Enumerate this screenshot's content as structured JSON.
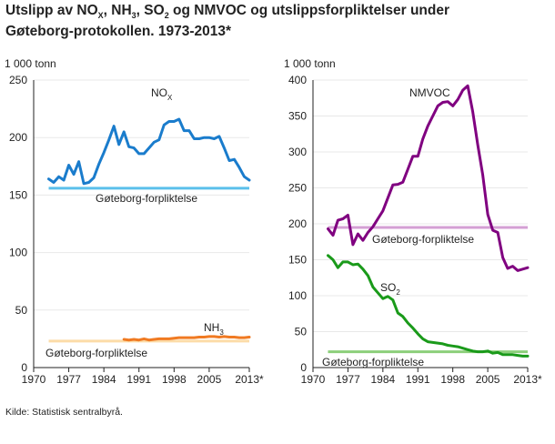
{
  "title": "Utslipp av NOX, NH3, SO2 og NMVOC og utslippsforpliktelser under Gøteborg-protokollen. 1973-2013*",
  "title_parts": {
    "t1": "Utslipp av NO",
    "t1_sub": "X",
    "t2": ", NH",
    "t2_sub": "3",
    "t3": ", SO",
    "t3_sub": "2",
    "t4": " og NMVOC og utslippsforpliktelser under",
    "t5": "Gøteborg-protokollen. 1973-2013*"
  },
  "source": "Kilde: Statistisk sentralbyrå.",
  "colors": {
    "nox": "#1a7ccc",
    "nox_target": "#5bc0eb",
    "nh3": "#f07a22",
    "nh3_target": "#fcdca8",
    "nmvoc": "#800080",
    "nmvoc_target": "#d49fd4",
    "so2": "#1a9a1a",
    "so2_target": "#8ccf7a",
    "axis": "#222222",
    "grid": "#f0f0f0"
  },
  "chart_data": [
    {
      "type": "line",
      "panel": "left",
      "ylabel": "1 000 tonn",
      "ylim": [
        0,
        250
      ],
      "yticks": [
        0,
        50,
        100,
        150,
        200,
        250
      ],
      "xlim": [
        1970,
        2013
      ],
      "xticks": [
        1970,
        1977,
        1984,
        1991,
        1998,
        2005
      ],
      "xtick_labels": [
        "1970",
        "1977",
        "1984",
        "1991",
        "1998",
        "2005",
        "2013*"
      ],
      "xtick_last": 2013,
      "series": [
        {
          "name": "NOX",
          "label": "NO",
          "label_sub": "X",
          "color_key": "nox",
          "x": [
            1973,
            1974,
            1975,
            1976,
            1977,
            1978,
            1979,
            1980,
            1981,
            1982,
            1983,
            1984,
            1985,
            1986,
            1987,
            1988,
            1989,
            1990,
            1991,
            1992,
            1993,
            1994,
            1995,
            1996,
            1997,
            1998,
            1999,
            2000,
            2001,
            2002,
            2003,
            2004,
            2005,
            2006,
            2007,
            2008,
            2009,
            2010,
            2011,
            2012,
            2013
          ],
          "values": [
            164,
            161,
            166,
            163,
            176,
            168,
            179,
            160,
            161,
            165,
            177,
            187,
            198,
            210,
            194,
            205,
            192,
            191,
            186,
            186,
            191,
            196,
            198,
            211,
            214,
            214,
            216,
            206,
            206,
            199,
            199,
            200,
            200,
            199,
            201,
            191,
            180,
            181,
            174,
            166,
            163
          ]
        },
        {
          "name": "NH3",
          "label": "NH",
          "label_sub": "3",
          "color_key": "nh3",
          "x": [
            1988,
            1989,
            1990,
            1991,
            1992,
            1993,
            1994,
            1995,
            1996,
            1997,
            1998,
            1999,
            2000,
            2001,
            2002,
            2003,
            2004,
            2005,
            2006,
            2007,
            2008,
            2009,
            2010,
            2011,
            2012,
            2013
          ],
          "values": [
            24.5,
            24,
            24.5,
            24,
            25,
            24,
            24.5,
            25,
            25,
            25,
            25.5,
            26,
            26,
            26,
            26,
            26.5,
            26.5,
            27,
            27,
            26.5,
            27,
            26.5,
            26.5,
            26,
            26,
            26.5
          ]
        }
      ],
      "targets": [
        {
          "name": "Gøteborg-forpliktelse (NOX)",
          "label": "Gøteborg-forpliktelse",
          "value": 156,
          "x": [
            1973,
            2013
          ],
          "color_key": "nox_target"
        },
        {
          "name": "Gøteborg-forpliktelse (NH3)",
          "label": "Gøteborg-forpliktelse",
          "value": 23,
          "x": [
            1973,
            2013
          ],
          "color_key": "nh3_target"
        }
      ]
    },
    {
      "type": "line",
      "panel": "right",
      "ylabel": "1 000 tonn",
      "ylim": [
        0,
        400
      ],
      "yticks": [
        0,
        50,
        100,
        150,
        200,
        250,
        300,
        350,
        400
      ],
      "xlim": [
        1970,
        2013
      ],
      "xticks": [
        1970,
        1977,
        1984,
        1991,
        1998,
        2005
      ],
      "xtick_labels": [
        "1970",
        "1977",
        "1984",
        "1991",
        "1998",
        "2005",
        "2013*"
      ],
      "xtick_last": 2013,
      "series": [
        {
          "name": "NMVOC",
          "label": "NMVOC",
          "label_sub": "",
          "color_key": "nmvoc",
          "x": [
            1973,
            1974,
            1975,
            1976,
            1977,
            1978,
            1979,
            1980,
            1981,
            1982,
            1983,
            1984,
            1985,
            1986,
            1987,
            1988,
            1989,
            1990,
            1991,
            1992,
            1993,
            1994,
            1995,
            1996,
            1997,
            1998,
            1999,
            2000,
            2001,
            2002,
            2003,
            2004,
            2005,
            2006,
            2007,
            2008,
            2009,
            2010,
            2011,
            2012,
            2013
          ],
          "values": [
            193,
            184,
            205,
            207,
            212,
            171,
            186,
            177,
            188,
            196,
            207,
            218,
            236,
            254,
            255,
            258,
            276,
            294,
            294,
            318,
            336,
            350,
            364,
            369,
            370,
            364,
            373,
            386,
            392,
            356,
            310,
            268,
            213,
            191,
            188,
            153,
            138,
            141,
            135,
            137,
            139
          ]
        },
        {
          "name": "SO2",
          "label": "SO",
          "label_sub": "2",
          "color_key": "so2",
          "x": [
            1973,
            1974,
            1975,
            1976,
            1977,
            1978,
            1979,
            1980,
            1981,
            1982,
            1983,
            1984,
            1985,
            1986,
            1987,
            1988,
            1989,
            1990,
            1991,
            1992,
            1993,
            1994,
            1995,
            1996,
            1997,
            1998,
            1999,
            2000,
            2001,
            2002,
            2003,
            2004,
            2005,
            2006,
            2007,
            2008,
            2009,
            2010,
            2011,
            2012,
            2013
          ],
          "values": [
            156,
            150,
            139,
            147,
            147,
            143,
            144,
            137,
            128,
            112,
            104,
            96,
            99,
            94,
            76,
            71,
            62,
            55,
            47,
            40,
            36,
            35,
            34,
            33,
            31,
            30,
            29,
            27,
            25,
            23,
            22,
            22,
            23,
            20,
            21,
            18,
            18,
            18,
            17,
            16,
            16
          ]
        }
      ],
      "targets": [
        {
          "name": "Gøteborg-forpliktelse (NMVOC)",
          "label": "Gøteborg-forpliktelse",
          "value": 195,
          "x": [
            1973,
            2013
          ],
          "color_key": "nmvoc_target"
        },
        {
          "name": "Gøteborg-forpliktelse (SO2)",
          "label": "Gøteborg-forpliktelse",
          "value": 22,
          "x": [
            1973,
            2013
          ],
          "color_key": "so2_target"
        }
      ]
    }
  ]
}
